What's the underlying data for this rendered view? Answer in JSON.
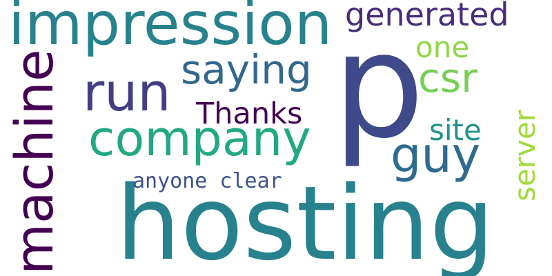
{
  "words": {
    "hosting": {
      "text": "hosting",
      "color": "#27828d"
    },
    "p": {
      "text": "p",
      "color": "#3e4a89"
    },
    "impression": {
      "text": "impression",
      "color": "#27828d"
    },
    "company": {
      "text": "company",
      "color": "#23a884"
    },
    "machine": {
      "text": "machine",
      "color": "#440154"
    },
    "run": {
      "text": "run",
      "color": "#433e85"
    },
    "saying": {
      "text": "saying",
      "color": "#31688e"
    },
    "guy": {
      "text": "guy",
      "color": "#2f6b8e"
    },
    "generated": {
      "text": "generated",
      "color": "#472d7b"
    },
    "thanks": {
      "text": "Thanks",
      "color": "#440154"
    },
    "csr": {
      "text": "csr",
      "color": "#75d054"
    },
    "one": {
      "text": "one",
      "color": "#8fd744"
    },
    "site": {
      "text": "site",
      "color": "#20928c"
    },
    "server": {
      "text": "server",
      "color": "#a0da39"
    },
    "anyone_clear": {
      "text": "anyone clear",
      "color": "#3b528b"
    }
  }
}
